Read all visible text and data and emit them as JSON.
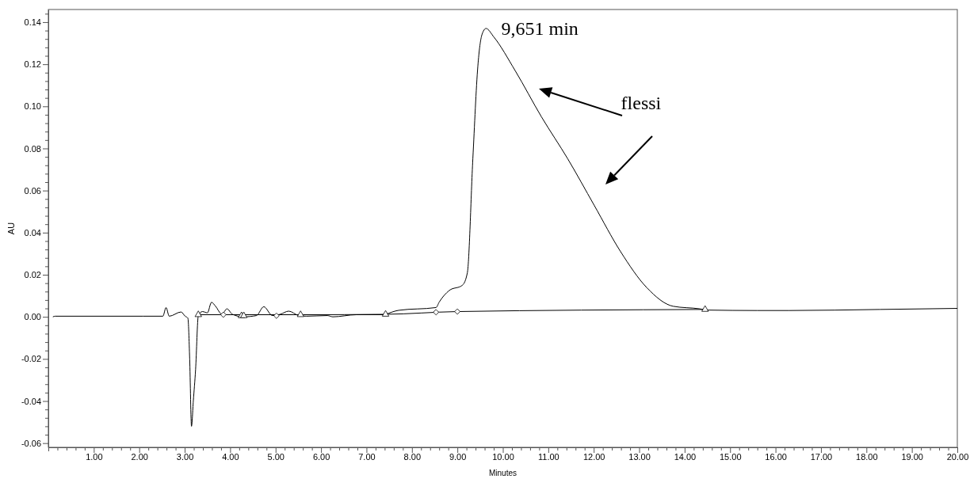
{
  "chart_data": {
    "type": "line",
    "xlabel": "Minutes",
    "ylabel": "AU",
    "xlim": [
      0,
      20
    ],
    "ylim": [
      -0.062,
      0.146
    ],
    "grid": false,
    "marker": "none",
    "line_style": "solid",
    "xticks": [
      {
        "value": 0.2,
        "label": null
      },
      {
        "value": 0.4,
        "label": null
      },
      {
        "value": 0.6,
        "label": null
      },
      {
        "value": 0.8,
        "label": null
      },
      {
        "value": 1,
        "label": "1.00"
      },
      {
        "value": 1.2,
        "label": null
      },
      {
        "value": 1.4,
        "label": null
      },
      {
        "value": 1.6,
        "label": null
      },
      {
        "value": 1.8,
        "label": null
      },
      {
        "value": 2,
        "label": "2.00"
      },
      {
        "value": 2.2,
        "label": null
      },
      {
        "value": 2.4,
        "label": null
      },
      {
        "value": 2.6,
        "label": null
      },
      {
        "value": 2.8,
        "label": null
      },
      {
        "value": 3,
        "label": "3.00"
      },
      {
        "value": 3.2,
        "label": null
      },
      {
        "value": 3.4,
        "label": null
      },
      {
        "value": 3.6,
        "label": null
      },
      {
        "value": 3.8,
        "label": null
      },
      {
        "value": 4,
        "label": "4.00"
      },
      {
        "value": 4.2,
        "label": null
      },
      {
        "value": 4.4,
        "label": null
      },
      {
        "value": 4.6,
        "label": null
      },
      {
        "value": 4.8,
        "label": null
      },
      {
        "value": 5,
        "label": "5.00"
      },
      {
        "value": 5.2,
        "label": null
      },
      {
        "value": 5.4,
        "label": null
      },
      {
        "value": 5.6,
        "label": null
      },
      {
        "value": 5.8,
        "label": null
      },
      {
        "value": 6,
        "label": "6.00"
      },
      {
        "value": 6.2,
        "label": null
      },
      {
        "value": 6.4,
        "label": null
      },
      {
        "value": 6.6,
        "label": null
      },
      {
        "value": 6.8,
        "label": null
      },
      {
        "value": 7,
        "label": "7.00"
      },
      {
        "value": 7.2,
        "label": null
      },
      {
        "value": 7.4,
        "label": null
      },
      {
        "value": 7.6,
        "label": null
      },
      {
        "value": 7.8,
        "label": null
      },
      {
        "value": 8,
        "label": "8.00"
      },
      {
        "value": 8.2,
        "label": null
      },
      {
        "value": 8.4,
        "label": null
      },
      {
        "value": 8.6,
        "label": null
      },
      {
        "value": 8.8,
        "label": null
      },
      {
        "value": 9,
        "label": "9.00"
      },
      {
        "value": 9.2,
        "label": null
      },
      {
        "value": 9.4,
        "label": null
      },
      {
        "value": 9.6,
        "label": null
      },
      {
        "value": 9.8,
        "label": null
      },
      {
        "value": 10,
        "label": "10.00"
      },
      {
        "value": 10.2,
        "label": null
      },
      {
        "value": 10.4,
        "label": null
      },
      {
        "value": 10.6,
        "label": null
      },
      {
        "value": 10.8,
        "label": null
      },
      {
        "value": 11,
        "label": "11.00"
      },
      {
        "value": 11.2,
        "label": null
      },
      {
        "value": 11.4,
        "label": null
      },
      {
        "value": 11.6,
        "label": null
      },
      {
        "value": 11.8,
        "label": null
      },
      {
        "value": 12,
        "label": "12.00"
      },
      {
        "value": 12.2,
        "label": null
      },
      {
        "value": 12.4,
        "label": null
      },
      {
        "value": 12.6,
        "label": null
      },
      {
        "value": 12.8,
        "label": null
      },
      {
        "value": 13,
        "label": "13.00"
      },
      {
        "value": 13.2,
        "label": null
      },
      {
        "value": 13.4,
        "label": null
      },
      {
        "value": 13.6,
        "label": null
      },
      {
        "value": 13.8,
        "label": null
      },
      {
        "value": 14,
        "label": "14.00"
      },
      {
        "value": 14.2,
        "label": null
      },
      {
        "value": 14.4,
        "label": null
      },
      {
        "value": 14.6,
        "label": null
      },
      {
        "value": 14.8,
        "label": null
      },
      {
        "value": 15,
        "label": "15.00"
      },
      {
        "value": 15.2,
        "label": null
      },
      {
        "value": 15.4,
        "label": null
      },
      {
        "value": 15.6,
        "label": null
      },
      {
        "value": 15.8,
        "label": null
      },
      {
        "value": 16,
        "label": "16.00"
      },
      {
        "value": 16.2,
        "label": null
      },
      {
        "value": 16.4,
        "label": null
      },
      {
        "value": 16.6,
        "label": null
      },
      {
        "value": 16.8,
        "label": null
      },
      {
        "value": 17,
        "label": "17.00"
      },
      {
        "value": 17.2,
        "label": null
      },
      {
        "value": 17.4,
        "label": null
      },
      {
        "value": 17.6,
        "label": null
      },
      {
        "value": 17.8,
        "label": null
      },
      {
        "value": 18,
        "label": "18.00"
      },
      {
        "value": 18.2,
        "label": null
      },
      {
        "value": 18.4,
        "label": null
      },
      {
        "value": 18.6,
        "label": null
      },
      {
        "value": 18.8,
        "label": null
      },
      {
        "value": 19,
        "label": "19.00"
      },
      {
        "value": 19.2,
        "label": null
      },
      {
        "value": 19.4,
        "label": null
      },
      {
        "value": 19.6,
        "label": null
      },
      {
        "value": 19.8,
        "label": null
      },
      {
        "value": 20,
        "label": "20.00"
      }
    ],
    "yticks": [
      {
        "value": -0.06,
        "label": "-0.06"
      },
      {
        "value": -0.056,
        "label": null
      },
      {
        "value": -0.052,
        "label": null
      },
      {
        "value": -0.048,
        "label": null
      },
      {
        "value": -0.044,
        "label": null
      },
      {
        "value": -0.04,
        "label": "-0.04"
      },
      {
        "value": -0.036,
        "label": null
      },
      {
        "value": -0.032,
        "label": null
      },
      {
        "value": -0.028,
        "label": null
      },
      {
        "value": -0.024,
        "label": null
      },
      {
        "value": -0.02,
        "label": "-0.02"
      },
      {
        "value": -0.016,
        "label": null
      },
      {
        "value": -0.012,
        "label": null
      },
      {
        "value": -0.008,
        "label": null
      },
      {
        "value": -0.004,
        "label": null
      },
      {
        "value": 0,
        "label": "0.00"
      },
      {
        "value": 0.004,
        "label": null
      },
      {
        "value": 0.008,
        "label": null
      },
      {
        "value": 0.012,
        "label": null
      },
      {
        "value": 0.016,
        "label": null
      },
      {
        "value": 0.02,
        "label": "0.02"
      },
      {
        "value": 0.024,
        "label": null
      },
      {
        "value": 0.028,
        "label": null
      },
      {
        "value": 0.032,
        "label": null
      },
      {
        "value": 0.036,
        "label": null
      },
      {
        "value": 0.04,
        "label": "0.04"
      },
      {
        "value": 0.044,
        "label": null
      },
      {
        "value": 0.048,
        "label": null
      },
      {
        "value": 0.052,
        "label": null
      },
      {
        "value": 0.056,
        "label": null
      },
      {
        "value": 0.06,
        "label": "0.06"
      },
      {
        "value": 0.064,
        "label": null
      },
      {
        "value": 0.068,
        "label": null
      },
      {
        "value": 0.072,
        "label": null
      },
      {
        "value": 0.076,
        "label": null
      },
      {
        "value": 0.08,
        "label": "0.08"
      },
      {
        "value": 0.084,
        "label": null
      },
      {
        "value": 0.088,
        "label": null
      },
      {
        "value": 0.092,
        "label": null
      },
      {
        "value": 0.096,
        "label": null
      },
      {
        "value": 0.1,
        "label": "0.10"
      },
      {
        "value": 0.104,
        "label": null
      },
      {
        "value": 0.108,
        "label": null
      },
      {
        "value": 0.112,
        "label": null
      },
      {
        "value": 0.116,
        "label": null
      },
      {
        "value": 0.12,
        "label": "0.12"
      },
      {
        "value": 0.124,
        "label": null
      },
      {
        "value": 0.128,
        "label": null
      },
      {
        "value": 0.132,
        "label": null
      },
      {
        "value": 0.136,
        "label": null
      },
      {
        "value": 0.14,
        "label": "0.14"
      },
      {
        "value": 0.144,
        "label": null
      }
    ],
    "series": [
      {
        "color": "#000000",
        "x": [
          0.1,
          0.15,
          2.08,
          2.52,
          2.59,
          2.66,
          2.92,
          3.01,
          3.07,
          3.11,
          3.15,
          3.19,
          3.24,
          3.3,
          3.39,
          3.5,
          3.59,
          3.68,
          3.82,
          3.93,
          4.05,
          4.29,
          4.58,
          4.74,
          4.93,
          5.1,
          5.29,
          5.51,
          5.68,
          6.14,
          6.26,
          6.78,
          7.39,
          7.42,
          7.71,
          8.53,
          8.6,
          8.82,
          9.11,
          9.22,
          9.34,
          9.45,
          9.54,
          9.63,
          9.8,
          10.27,
          10.85,
          11.43,
          12.01,
          12.59,
          13.17,
          13.75,
          14.33,
          14.5,
          15.6,
          16.3,
          18.3,
          20
        ],
        "values": [
          0,
          0.0003,
          0.0003,
          0.0003,
          0.0044,
          0.0003,
          0.0023,
          0.0003,
          -0.0006,
          -0.02,
          -0.052,
          -0.04,
          -0.025,
          0.0006,
          0.0025,
          0.0019,
          0.0069,
          0.005,
          0.0012,
          0.0038,
          0.0012,
          0,
          0.0006,
          0.0048,
          0.0006,
          0.0012,
          0.0027,
          0.0006,
          0.0003,
          0.0006,
          0,
          0.001,
          0.001,
          0.0012,
          0.0031,
          0.0044,
          0.007,
          0.0125,
          0.015,
          0.021,
          0.075,
          0.119,
          0.134,
          0.137,
          0.133,
          0.117,
          0.095,
          0.075,
          0.053,
          0.031,
          0.0138,
          0.005,
          0.0038,
          0.0032,
          0.003,
          0.003,
          0.0035,
          0.004
        ]
      },
      {
        "type": "line",
        "color": "#000000",
        "x": [
          3.3,
          5.6,
          7.42,
          9.0,
          14.45
        ],
        "values": [
          0.001,
          0.001,
          0.0012,
          0.0025,
          0.0035
        ]
      },
      {
        "type": "scatter",
        "marker": "triangle",
        "color": "#000000",
        "x": [
          3.3,
          4.25,
          4.3,
          5.55,
          7.42,
          14.45
        ],
        "values": [
          0.001,
          0.0005,
          0.0005,
          0.001,
          0.0012,
          0.0035
        ]
      },
      {
        "type": "scatter",
        "marker": "diamond",
        "color": "#000000",
        "x": [
          3.85,
          5.02,
          8.53,
          9.0
        ],
        "values": [
          0.001,
          0.0005,
          0.0022,
          0.0025
        ]
      }
    ],
    "annotations": [
      {
        "text": "9,651 min",
        "x": 9.651,
        "y": 0.137
      },
      "flessi"
    ]
  }
}
